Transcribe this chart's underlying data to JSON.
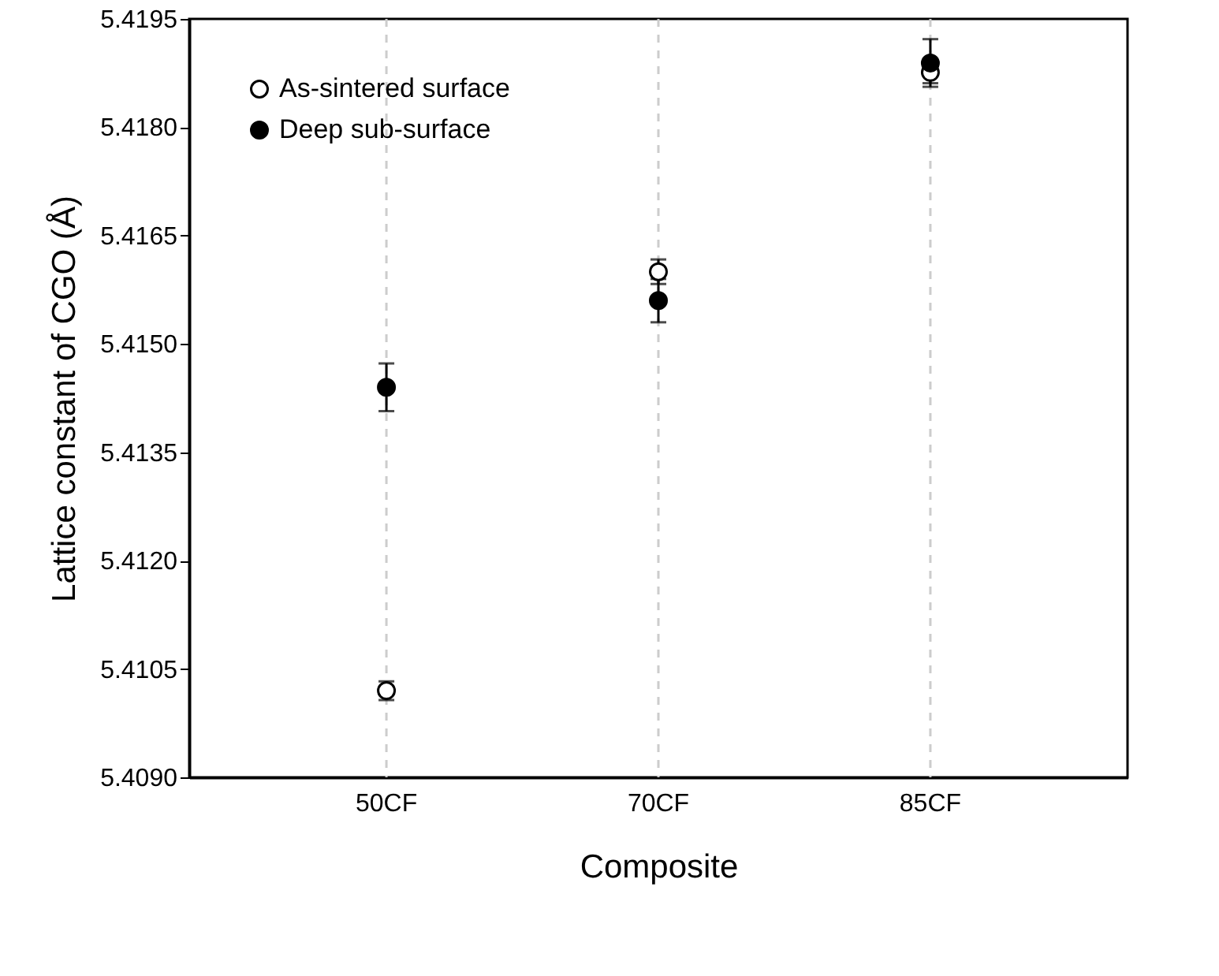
{
  "chart_data": {
    "type": "scatter",
    "xlabel": "Composite",
    "ylabel": "Lattice constant of CGO (Å)",
    "categories": [
      "50CF",
      "70CF",
      "85CF"
    ],
    "series": [
      {
        "name": "As-sintered surface",
        "color": "#000000",
        "values": [
          5.4102,
          5.416,
          5.41876
        ],
        "errors": [
          0.00013,
          0.00017,
          0.00015
        ]
      },
      {
        "name": "Deep sub-surface",
        "color": "#000000",
        "values": [
          5.4144,
          5.4156,
          5.41889
        ],
        "errors": [
          0.00033,
          0.0003,
          0.00033
        ]
      }
    ],
    "ylim": [
      5.409,
      5.4195
    ],
    "yticks": [
      {
        "value": 5.409,
        "label": "5.4090"
      },
      {
        "value": 5.4105,
        "label": "5.4105"
      },
      {
        "value": 5.412,
        "label": "5.4120"
      },
      {
        "value": 5.4135,
        "label": "5.4135"
      },
      {
        "value": 5.415,
        "label": "5.4150"
      },
      {
        "value": 5.4165,
        "label": "5.4165"
      },
      {
        "value": 5.418,
        "label": "5.4180"
      },
      {
        "value": 5.4195,
        "label": "5.4195"
      }
    ],
    "grid": "x",
    "legend": "top left",
    "marker": "circle"
  }
}
